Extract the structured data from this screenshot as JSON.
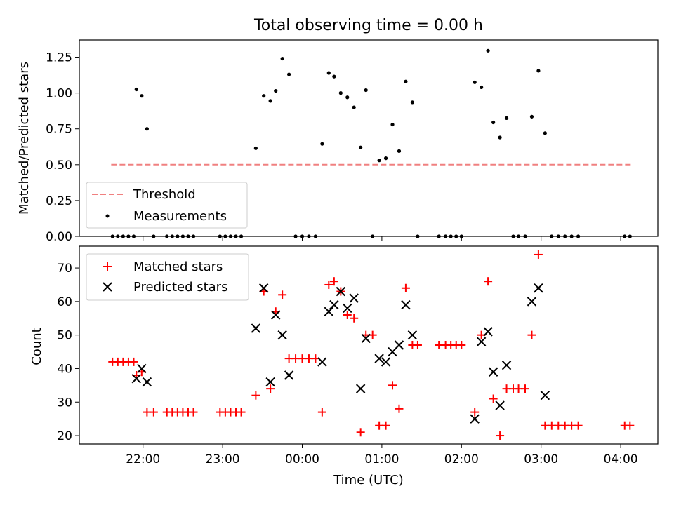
{
  "chart_data": [
    {
      "type": "scatter",
      "title": "Total observing time = 0.00 h",
      "ylabel": "Matched/Predicted stars",
      "xlim": [
        "21:12",
        "04:28"
      ],
      "ylim": [
        0,
        1.37
      ],
      "yticks": [
        0.0,
        0.25,
        0.5,
        0.75,
        1.0,
        1.25
      ],
      "ytick_labels": [
        "0.00",
        "0.25",
        "0.50",
        "0.75",
        "1.00",
        "1.25"
      ],
      "legend": {
        "position": "lower-left",
        "threshold_label": "Threshold",
        "measurements_label": "Measurements"
      },
      "threshold": {
        "value": 0.5,
        "x_start": "21:36",
        "x_end": "04:08",
        "color": "#f08080"
      },
      "series": [
        {
          "name": "Measurements",
          "color": "#000000",
          "points": [
            [
              "21:37",
              0
            ],
            [
              "21:41",
              0
            ],
            [
              "21:45",
              0
            ],
            [
              "21:49",
              0
            ],
            [
              "21:53",
              0
            ],
            [
              "21:55",
              1.025
            ],
            [
              "21:59",
              0.98
            ],
            [
              "22:03",
              0.75
            ],
            [
              "22:08",
              0
            ],
            [
              "22:18",
              0
            ],
            [
              "22:22",
              0
            ],
            [
              "22:26",
              0
            ],
            [
              "22:30",
              0
            ],
            [
              "22:34",
              0
            ],
            [
              "22:38",
              0
            ],
            [
              "22:58",
              0
            ],
            [
              "23:02",
              0
            ],
            [
              "23:06",
              0
            ],
            [
              "23:10",
              0
            ],
            [
              "23:14",
              0
            ],
            [
              "23:25",
              0.615
            ],
            [
              "23:31",
              0.98
            ],
            [
              "23:36",
              0.945
            ],
            [
              "23:40",
              1.015
            ],
            [
              "23:45",
              1.24
            ],
            [
              "23:50",
              1.13
            ],
            [
              "23:55",
              0
            ],
            [
              "00:00",
              0
            ],
            [
              "00:05",
              0
            ],
            [
              "00:10",
              0
            ],
            [
              "00:15",
              0.645
            ],
            [
              "00:20",
              1.14
            ],
            [
              "00:24",
              1.115
            ],
            [
              "00:29",
              1.0
            ],
            [
              "00:34",
              0.97
            ],
            [
              "00:39",
              0.9
            ],
            [
              "00:44",
              0.62
            ],
            [
              "00:48",
              1.02
            ],
            [
              "00:53",
              0
            ],
            [
              "00:58",
              0.53
            ],
            [
              "01:03",
              0.545
            ],
            [
              "01:08",
              0.78
            ],
            [
              "01:13",
              0.595
            ],
            [
              "01:18",
              1.08
            ],
            [
              "01:23",
              0.935
            ],
            [
              "01:27",
              0
            ],
            [
              "01:43",
              0
            ],
            [
              "01:48",
              0
            ],
            [
              "01:52",
              0
            ],
            [
              "01:56",
              0
            ],
            [
              "02:00",
              0
            ],
            [
              "02:10",
              1.075
            ],
            [
              "02:15",
              1.04
            ],
            [
              "02:20",
              1.295
            ],
            [
              "02:24",
              0.795
            ],
            [
              "02:29",
              0.69
            ],
            [
              "02:34",
              0.825
            ],
            [
              "02:39",
              0
            ],
            [
              "02:43",
              0
            ],
            [
              "02:48",
              0
            ],
            [
              "02:53",
              0.835
            ],
            [
              "02:58",
              1.155
            ],
            [
              "03:03",
              0.72
            ],
            [
              "03:08",
              0
            ],
            [
              "03:13",
              0
            ],
            [
              "03:18",
              0
            ],
            [
              "03:23",
              0
            ],
            [
              "03:28",
              0
            ],
            [
              "04:03",
              0
            ],
            [
              "04:07",
              0
            ]
          ]
        }
      ]
    },
    {
      "type": "scatter",
      "xlabel": "Time (UTC)",
      "ylabel": "Count",
      "xlim": [
        "21:12",
        "04:28"
      ],
      "ylim": [
        17.5,
        76.5
      ],
      "yticks": [
        20,
        30,
        40,
        50,
        60,
        70
      ],
      "ytick_labels": [
        "20",
        "30",
        "40",
        "50",
        "60",
        "70"
      ],
      "xticks": [
        "22:00",
        "23:00",
        "00:00",
        "01:00",
        "02:00",
        "03:00",
        "04:00"
      ],
      "legend": {
        "position": "top-left"
      },
      "series": [
        {
          "name": "Matched stars",
          "marker": "plus",
          "color": "#ff0000",
          "points": [
            [
              "21:37",
              42
            ],
            [
              "21:41",
              42
            ],
            [
              "21:45",
              42
            ],
            [
              "21:49",
              42
            ],
            [
              "21:53",
              42
            ],
            [
              "21:55",
              38
            ],
            [
              "21:59",
              39
            ],
            [
              "22:03",
              27
            ],
            [
              "22:08",
              27
            ],
            [
              "22:18",
              27
            ],
            [
              "22:22",
              27
            ],
            [
              "22:26",
              27
            ],
            [
              "22:30",
              27
            ],
            [
              "22:34",
              27
            ],
            [
              "22:38",
              27
            ],
            [
              "22:58",
              27
            ],
            [
              "23:02",
              27
            ],
            [
              "23:06",
              27
            ],
            [
              "23:10",
              27
            ],
            [
              "23:14",
              27
            ],
            [
              "23:25",
              32
            ],
            [
              "23:31",
              63
            ],
            [
              "23:36",
              34
            ],
            [
              "23:40",
              57
            ],
            [
              "23:45",
              62
            ],
            [
              "23:50",
              43
            ],
            [
              "23:55",
              43
            ],
            [
              "00:00",
              43
            ],
            [
              "00:05",
              43
            ],
            [
              "00:10",
              43
            ],
            [
              "00:15",
              27
            ],
            [
              "00:20",
              65
            ],
            [
              "00:24",
              66
            ],
            [
              "00:29",
              63
            ],
            [
              "00:34",
              56
            ],
            [
              "00:39",
              55
            ],
            [
              "00:44",
              21
            ],
            [
              "00:48",
              50
            ],
            [
              "00:53",
              50
            ],
            [
              "00:58",
              23
            ],
            [
              "01:03",
              23
            ],
            [
              "01:08",
              35
            ],
            [
              "01:13",
              28
            ],
            [
              "01:18",
              64
            ],
            [
              "01:23",
              47
            ],
            [
              "01:27",
              47
            ],
            [
              "01:43",
              47
            ],
            [
              "01:48",
              47
            ],
            [
              "01:52",
              47
            ],
            [
              "01:56",
              47
            ],
            [
              "02:00",
              47
            ],
            [
              "02:10",
              27
            ],
            [
              "02:15",
              50
            ],
            [
              "02:20",
              66
            ],
            [
              "02:24",
              31
            ],
            [
              "02:29",
              20
            ],
            [
              "02:34",
              34
            ],
            [
              "02:39",
              34
            ],
            [
              "02:43",
              34
            ],
            [
              "02:48",
              34
            ],
            [
              "02:53",
              50
            ],
            [
              "02:58",
              74
            ],
            [
              "03:03",
              23
            ],
            [
              "03:08",
              23
            ],
            [
              "03:13",
              23
            ],
            [
              "03:18",
              23
            ],
            [
              "03:23",
              23
            ],
            [
              "03:28",
              23
            ],
            [
              "04:03",
              23
            ],
            [
              "04:07",
              23
            ]
          ]
        },
        {
          "name": "Predicted stars",
          "marker": "x",
          "color": "#000000",
          "points": [
            [
              "21:55",
              37
            ],
            [
              "21:59",
              40
            ],
            [
              "22:03",
              36
            ],
            [
              "23:25",
              52
            ],
            [
              "23:31",
              64
            ],
            [
              "23:36",
              36
            ],
            [
              "23:40",
              56
            ],
            [
              "23:45",
              50
            ],
            [
              "23:50",
              38
            ],
            [
              "00:15",
              42
            ],
            [
              "00:20",
              57
            ],
            [
              "00:24",
              59
            ],
            [
              "00:29",
              63
            ],
            [
              "00:34",
              58
            ],
            [
              "00:39",
              61
            ],
            [
              "00:44",
              34
            ],
            [
              "00:48",
              49
            ],
            [
              "00:58",
              43
            ],
            [
              "01:03",
              42
            ],
            [
              "01:08",
              45
            ],
            [
              "01:13",
              47
            ],
            [
              "01:18",
              59
            ],
            [
              "01:23",
              50
            ],
            [
              "02:10",
              25
            ],
            [
              "02:15",
              48
            ],
            [
              "02:20",
              51
            ],
            [
              "02:24",
              39
            ],
            [
              "02:29",
              29
            ],
            [
              "02:34",
              41
            ],
            [
              "02:53",
              60
            ],
            [
              "02:58",
              64
            ],
            [
              "03:03",
              32
            ]
          ]
        }
      ]
    }
  ]
}
